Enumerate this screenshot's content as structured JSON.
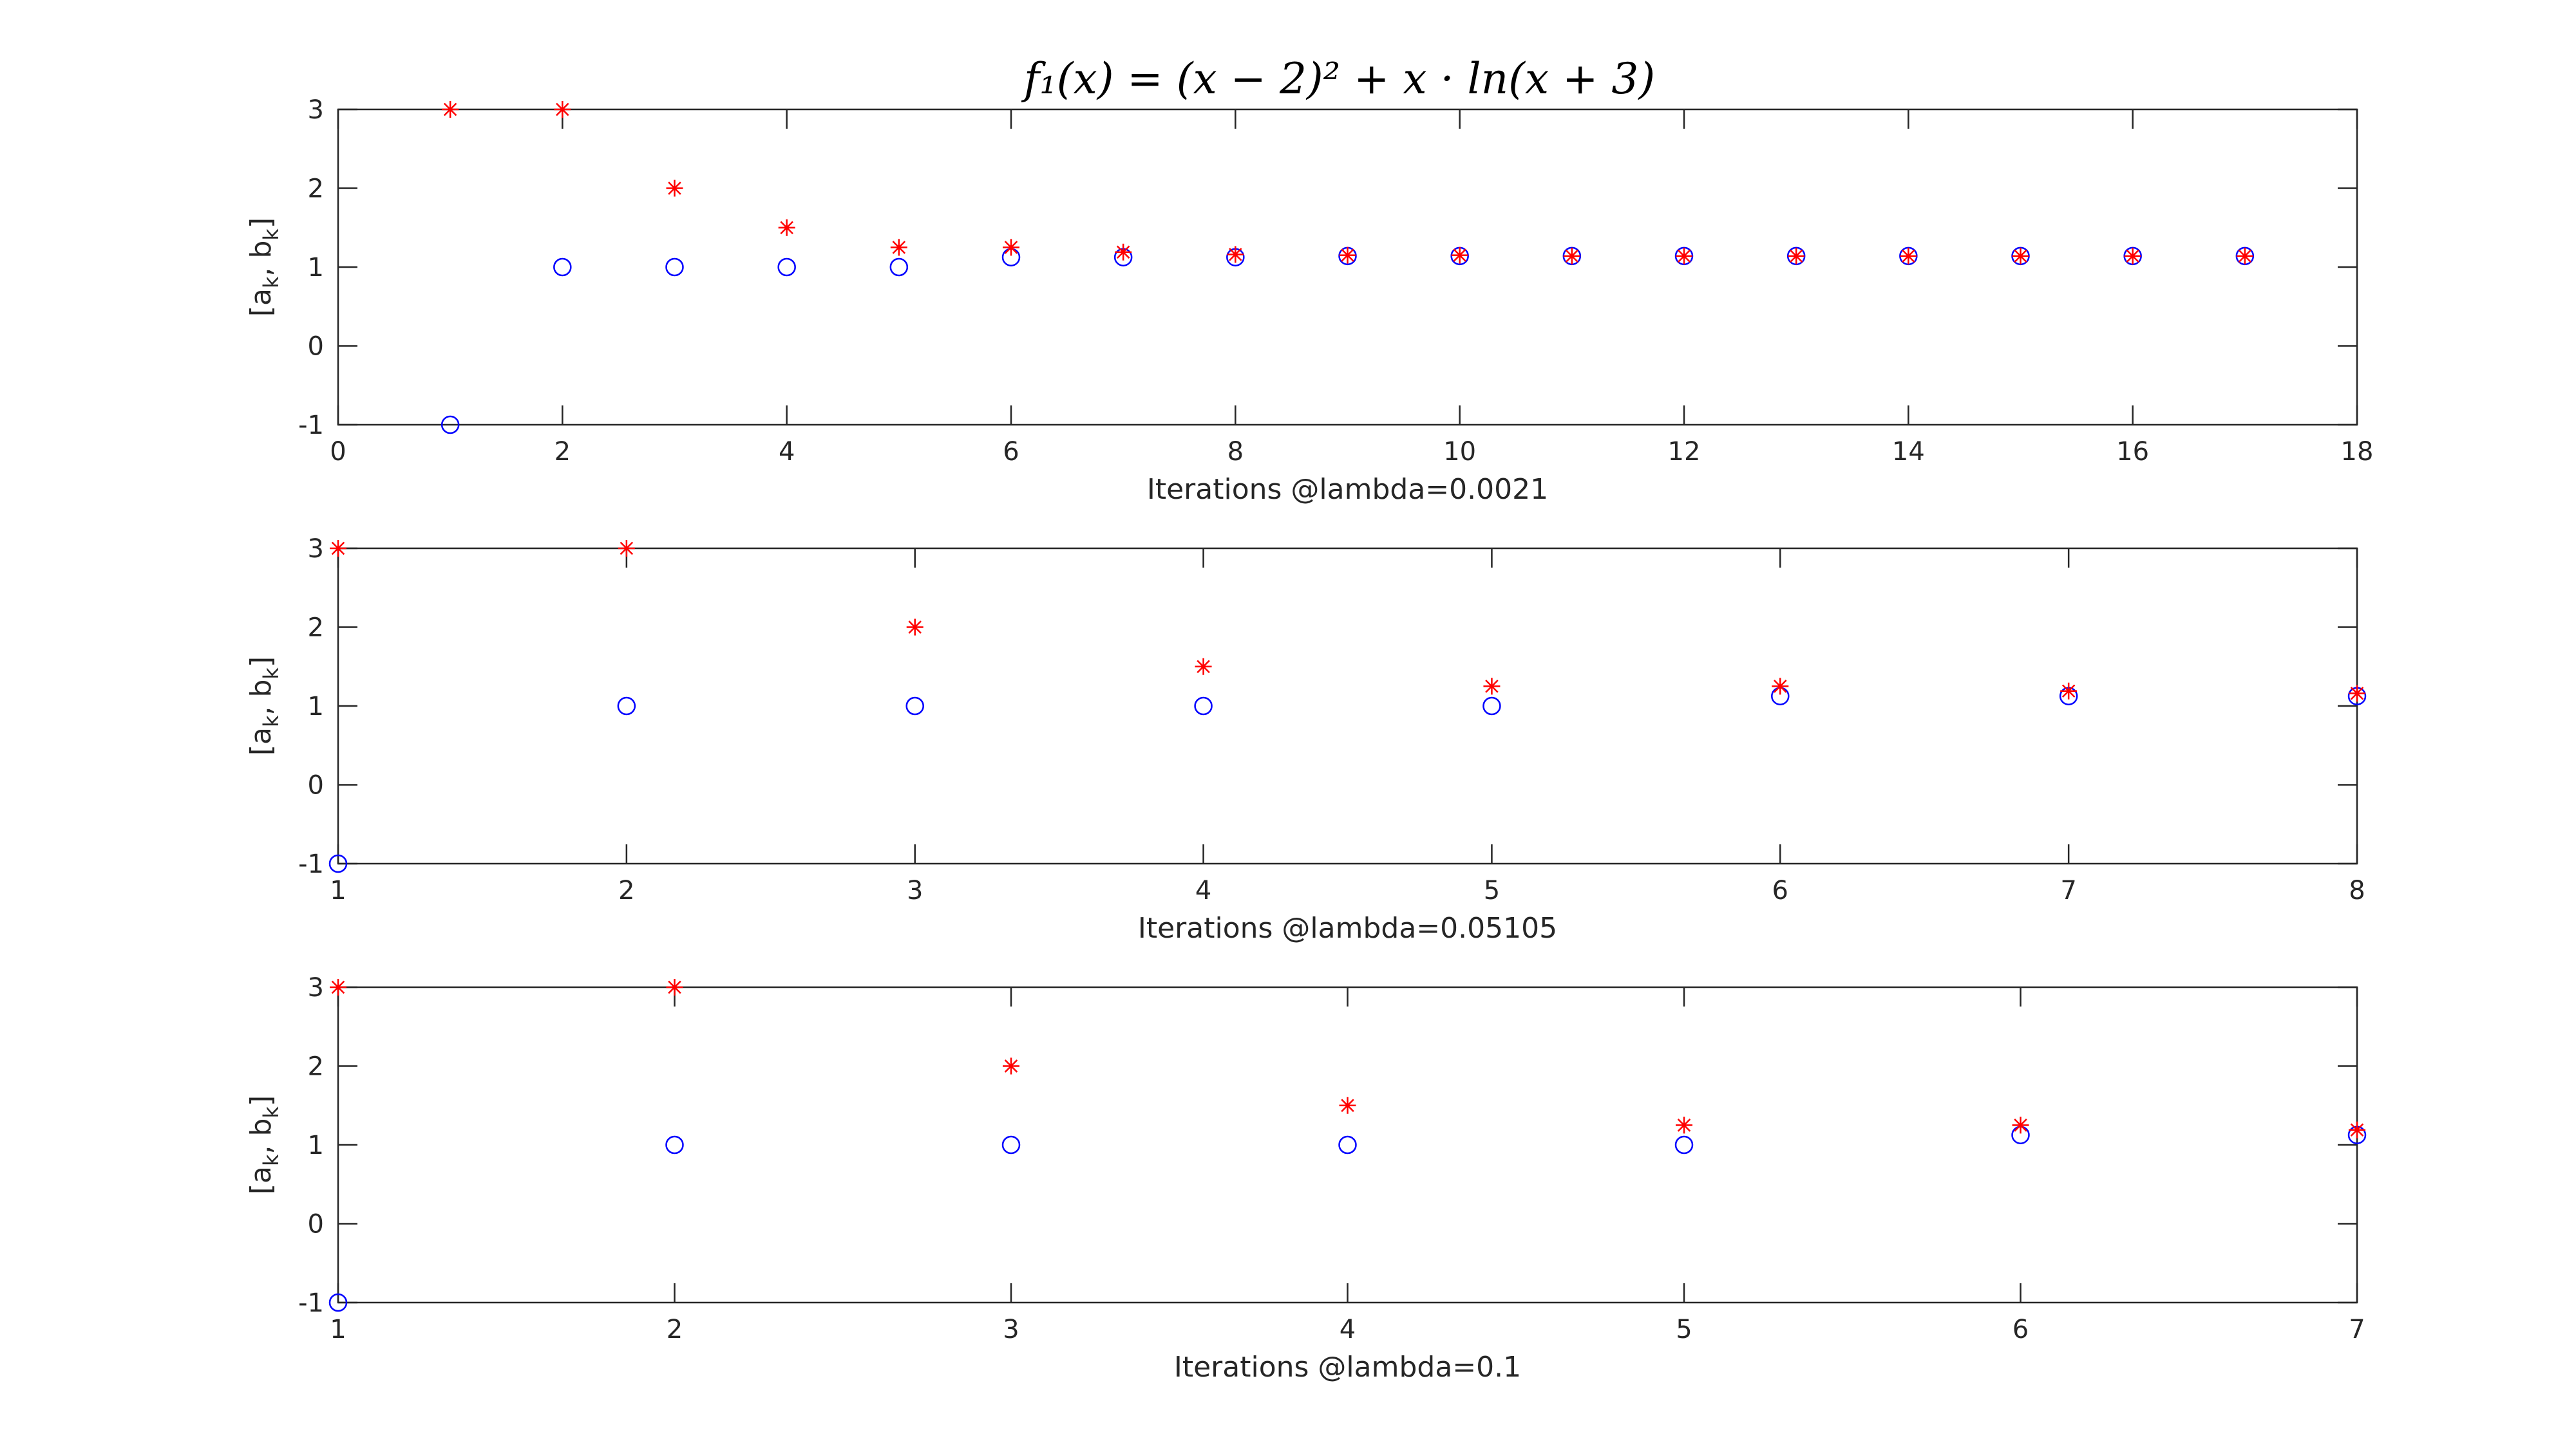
{
  "figure_title": "f₁(x) = (x − 2)² + x · ln(x + 3)",
  "colors": {
    "a_series": "#0000ff",
    "b_series": "#ff0000",
    "axes": "#262626"
  },
  "chart_data": [
    {
      "type": "scatter",
      "xlabel": "Iterations @lambda=0.0021",
      "ylabel": "[a_k, b_k]",
      "xlim": [
        0,
        18
      ],
      "ylim": [
        -1,
        3
      ],
      "xticks": [
        0,
        2,
        4,
        6,
        8,
        10,
        12,
        14,
        16,
        18
      ],
      "yticks": [
        -1,
        0,
        1,
        2,
        3
      ],
      "grid": false,
      "series": [
        {
          "marker": "circle",
          "color": "#0000ff",
          "x": [
            1,
            2,
            3,
            4,
            5,
            6,
            7,
            8,
            9,
            10,
            11,
            12,
            13,
            14,
            15,
            16,
            17
          ],
          "y": [
            -1,
            1,
            1,
            1,
            1,
            1.125,
            1.125,
            1.125,
            1.14,
            1.14,
            1.14,
            1.14,
            1.14,
            1.14,
            1.14,
            1.14,
            1.14
          ]
        },
        {
          "marker": "asterisk",
          "color": "#ff0000",
          "x": [
            1,
            2,
            3,
            4,
            5,
            6,
            7,
            8,
            9,
            10,
            11,
            12,
            13,
            14,
            15,
            16,
            17
          ],
          "y": [
            3,
            3,
            2,
            1.5,
            1.25,
            1.25,
            1.19,
            1.16,
            1.15,
            1.15,
            1.14,
            1.14,
            1.14,
            1.14,
            1.14,
            1.14,
            1.14
          ]
        }
      ]
    },
    {
      "type": "scatter",
      "xlabel": "Iterations @lambda=0.05105",
      "ylabel": "[a_k, b_k]",
      "xlim": [
        1,
        8
      ],
      "ylim": [
        -1,
        3
      ],
      "xticks": [
        1,
        2,
        3,
        4,
        5,
        6,
        7,
        8
      ],
      "yticks": [
        -1,
        0,
        1,
        2,
        3
      ],
      "grid": false,
      "series": [
        {
          "marker": "circle",
          "color": "#0000ff",
          "x": [
            1,
            2,
            3,
            4,
            5,
            6,
            7,
            8
          ],
          "y": [
            -1,
            1,
            1,
            1,
            1,
            1.125,
            1.125,
            1.125
          ]
        },
        {
          "marker": "asterisk",
          "color": "#ff0000",
          "x": [
            1,
            2,
            3,
            4,
            5,
            6,
            7,
            8
          ],
          "y": [
            3,
            3,
            2,
            1.5,
            1.25,
            1.25,
            1.19,
            1.16
          ]
        }
      ]
    },
    {
      "type": "scatter",
      "xlabel": "Iterations @lambda=0.1",
      "ylabel": "[a_k, b_k]",
      "xlim": [
        1,
        7
      ],
      "ylim": [
        -1,
        3
      ],
      "xticks": [
        1,
        2,
        3,
        4,
        5,
        6,
        7
      ],
      "yticks": [
        -1,
        0,
        1,
        2,
        3
      ],
      "grid": false,
      "series": [
        {
          "marker": "circle",
          "color": "#0000ff",
          "x": [
            1,
            2,
            3,
            4,
            5,
            6,
            7
          ],
          "y": [
            -1,
            1,
            1,
            1,
            1,
            1.125,
            1.125
          ]
        },
        {
          "marker": "asterisk",
          "color": "#ff0000",
          "x": [
            1,
            2,
            3,
            4,
            5,
            6,
            7
          ],
          "y": [
            3,
            3,
            2,
            1.5,
            1.25,
            1.25,
            1.19
          ]
        }
      ]
    }
  ]
}
